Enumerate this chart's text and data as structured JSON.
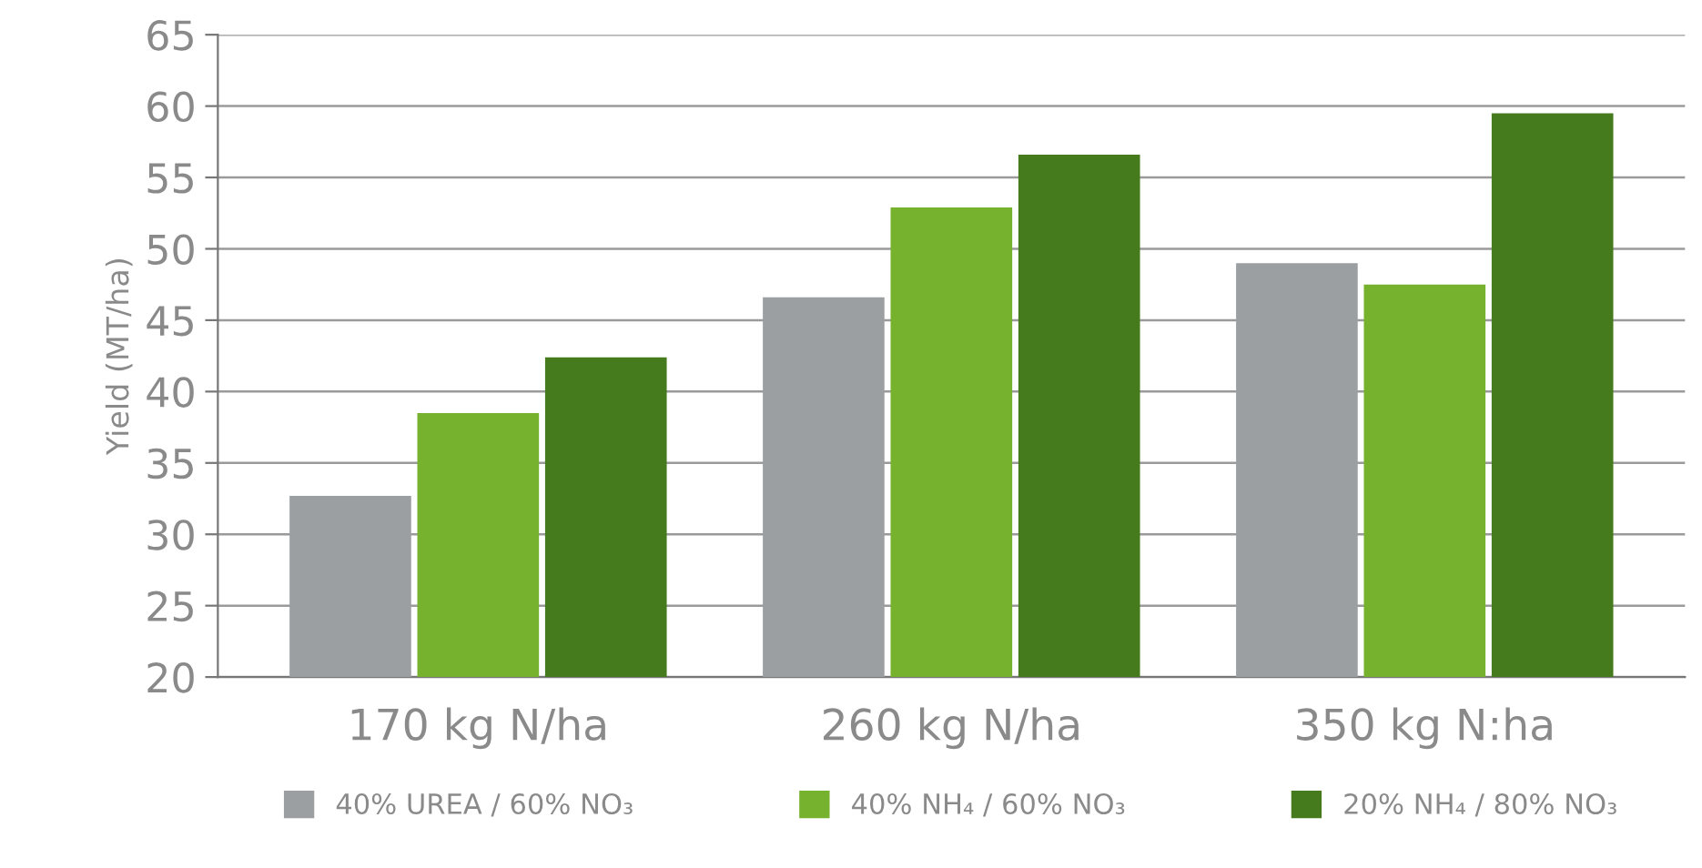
{
  "chart_data": {
    "type": "bar",
    "ylabel": "Yield (MT/ha)",
    "categories": [
      "170 kg N/ha",
      "260 kg N/ha",
      "350 kg N:ha"
    ],
    "series": [
      {
        "name": "40% UREA / 60% NO₃",
        "color": "#9c9fa2",
        "values": [
          32.7,
          46.6,
          49.0
        ]
      },
      {
        "name": "40% NH₄ / 60% NO₃",
        "color": "#76b22e",
        "values": [
          38.5,
          52.9,
          47.5
        ]
      },
      {
        "name": "20% NH₄ / 80% NO₃",
        "color": "#467b1d",
        "values": [
          42.4,
          56.6,
          59.5
        ]
      }
    ],
    "ylim": [
      20,
      65
    ],
    "yticks": [
      20,
      25,
      30,
      35,
      40,
      45,
      50,
      55,
      60,
      65
    ],
    "grid": "y",
    "legend": "bottom"
  }
}
